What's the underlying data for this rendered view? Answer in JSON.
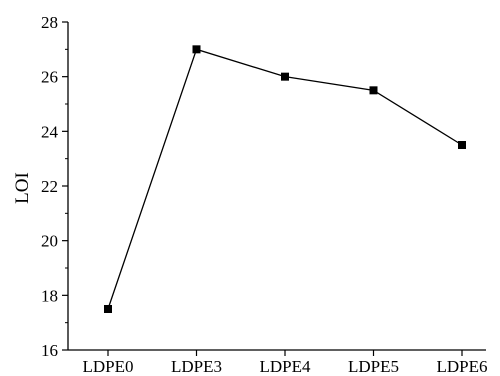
{
  "chart_data": {
    "type": "line",
    "title": "",
    "xlabel": "",
    "ylabel": "LOI",
    "categories": [
      "LDPE0",
      "LDPE3",
      "LDPE4",
      "LDPE5",
      "LDPE6"
    ],
    "series": [
      {
        "values": [
          17.5,
          27.0,
          26.0,
          25.5,
          23.5
        ]
      }
    ],
    "ylim": [
      16,
      28
    ],
    "yticks": [
      16,
      18,
      20,
      22,
      24,
      26,
      28
    ],
    "ytick_labels": [
      "16",
      "18",
      "20",
      "22",
      "24",
      "26",
      "28"
    ],
    "grid": false,
    "legend": "none",
    "colors": {
      "line": "#000000",
      "marker": "#000000",
      "axis": "#000000"
    }
  }
}
